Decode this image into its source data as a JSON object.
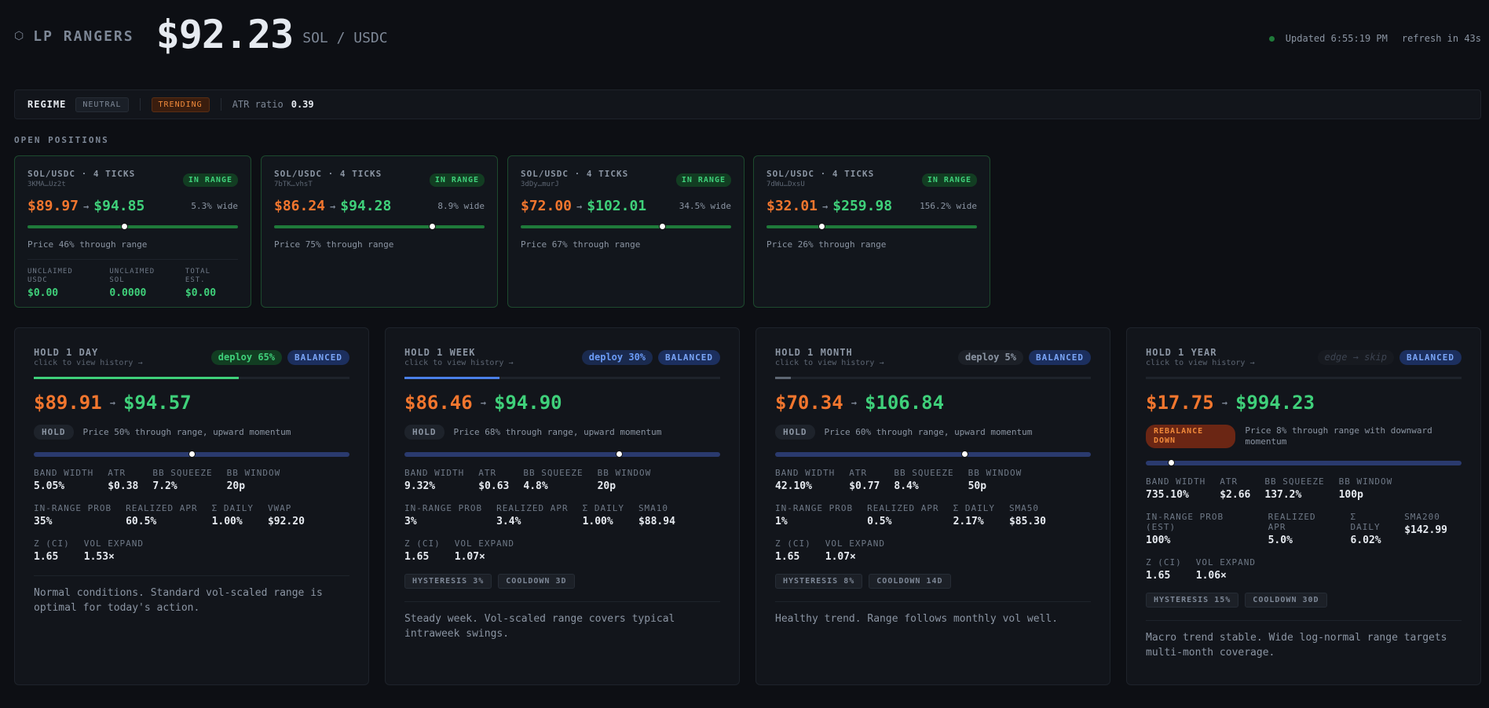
{
  "header": {
    "logo_glyph": "⬡",
    "app_title": "LP RANGERS",
    "price": "$92.23",
    "pair": "SOL / USDC",
    "updated": "Updated 6:55:19 PM",
    "refresh": "refresh in 43s",
    "status_color": "#1f7a3a"
  },
  "regime": {
    "label": "REGIME",
    "neutral": "NEUTRAL",
    "trending": "TRENDING",
    "atr_label": "ATR ratio",
    "atr_value": "0.39"
  },
  "open_positions_title": "OPEN POSITIONS",
  "positions": [
    {
      "title": "SOL/USDC · 4 TICKS",
      "addr": "3KMA…Uz2t",
      "status": "IN RANGE",
      "low": "$89.97",
      "high": "$94.85",
      "arrow": "→",
      "wide": "5.3% wide",
      "through_pct": 46,
      "through": "Price 46% through range",
      "unclaimed": [
        {
          "k": "UNCLAIMED USDC",
          "v": "$0.00"
        },
        {
          "k": "UNCLAIMED SOL",
          "v": "0.0000"
        },
        {
          "k": "TOTAL EST.",
          "v": "$0.00"
        }
      ]
    },
    {
      "title": "SOL/USDC · 4 TICKS",
      "addr": "7bTK…vhsT",
      "status": "IN RANGE",
      "low": "$86.24",
      "high": "$94.28",
      "arrow": "→",
      "wide": "8.9% wide",
      "through_pct": 75,
      "through": "Price 75% through range"
    },
    {
      "title": "SOL/USDC · 4 TICKS",
      "addr": "3dDy…murJ",
      "status": "IN RANGE",
      "low": "$72.00",
      "high": "$102.01",
      "arrow": "→",
      "wide": "34.5% wide",
      "through_pct": 67,
      "through": "Price 67% through range"
    },
    {
      "title": "SOL/USDC · 4 TICKS",
      "addr": "7dWu…DxsU",
      "status": "IN RANGE",
      "low": "$32.01",
      "high": "$259.98",
      "arrow": "→",
      "wide": "156.2% wide",
      "through_pct": 26,
      "through": "Price 26% through range"
    }
  ],
  "holds": [
    {
      "title": "HOLD 1 DAY",
      "sub": "click to view history →",
      "deploy": "deploy 65%",
      "deploy_fraction": 0.65,
      "deploy_color": "#3fd07a",
      "mode": "BALANCED",
      "low": "$89.91",
      "high": "$94.57",
      "arrow": "→",
      "action": "HOLD",
      "action_desc": "Price 50% through range, upward momentum",
      "through_pct": 50,
      "m1": [
        {
          "k": "BAND WIDTH",
          "v": "5.05%"
        },
        {
          "k": "ATR",
          "v": "$0.38"
        },
        {
          "k": "BB SQUEEZE",
          "v": "7.2%"
        },
        {
          "k": "BB WINDOW",
          "v": "20p"
        }
      ],
      "m2": [
        {
          "k": "IN-RANGE PROB",
          "v": "35%"
        },
        {
          "k": "REALIZED APR",
          "v": "60.5%"
        },
        {
          "k": "Σ DAILY",
          "v": "1.00%"
        },
        {
          "k": "VWAP",
          "v": "$92.20"
        }
      ],
      "m3": [
        {
          "k": "Z (CI)",
          "v": "1.65"
        },
        {
          "k": "VOL EXPAND",
          "v": "1.53×"
        }
      ],
      "note": "Normal conditions. Standard vol-scaled range is optimal for today's action."
    },
    {
      "title": "HOLD 1 WEEK",
      "sub": "click to view history →",
      "deploy": "deploy 30%",
      "deploy_fraction": 0.3,
      "deploy_color": "#4a7fe8",
      "mode": "BALANCED",
      "low": "$86.46",
      "high": "$94.90",
      "arrow": "→",
      "action": "HOLD",
      "action_desc": "Price 68% through range, upward momentum",
      "through_pct": 68,
      "m1": [
        {
          "k": "BAND WIDTH",
          "v": "9.32%"
        },
        {
          "k": "ATR",
          "v": "$0.63"
        },
        {
          "k": "BB SQUEEZE",
          "v": "4.8%"
        },
        {
          "k": "BB WINDOW",
          "v": "20p"
        }
      ],
      "m2": [
        {
          "k": "IN-RANGE PROB",
          "v": "3%"
        },
        {
          "k": "REALIZED APR",
          "v": "3.4%"
        },
        {
          "k": "Σ DAILY",
          "v": "1.00%"
        },
        {
          "k": "SMA10",
          "v": "$88.94"
        }
      ],
      "m3": [
        {
          "k": "Z (CI)",
          "v": "1.65"
        },
        {
          "k": "VOL EXPAND",
          "v": "1.07×"
        }
      ],
      "pills": [
        "HYSTERESIS 3%",
        "COOLDOWN 3D"
      ],
      "note": "Steady week. Vol-scaled range covers typical intraweek swings."
    },
    {
      "title": "HOLD 1 MONTH",
      "sub": "click to view history →",
      "deploy": "deploy 5%",
      "deploy_fraction": 0.05,
      "deploy_color": "#5d6673",
      "mode": "BALANCED",
      "low": "$70.34",
      "high": "$106.84",
      "arrow": "→",
      "action": "HOLD",
      "action_desc": "Price 60% through range, upward momentum",
      "through_pct": 60,
      "m1": [
        {
          "k": "BAND WIDTH",
          "v": "42.10%"
        },
        {
          "k": "ATR",
          "v": "$0.77"
        },
        {
          "k": "BB SQUEEZE",
          "v": "8.4%"
        },
        {
          "k": "BB WINDOW",
          "v": "50p"
        }
      ],
      "m2": [
        {
          "k": "IN-RANGE PROB",
          "v": "1%"
        },
        {
          "k": "REALIZED APR",
          "v": "0.5%"
        },
        {
          "k": "Σ DAILY",
          "v": "2.17%"
        },
        {
          "k": "SMA50",
          "v": "$85.30"
        }
      ],
      "m3": [
        {
          "k": "Z (CI)",
          "v": "1.65"
        },
        {
          "k": "VOL EXPAND",
          "v": "1.07×"
        }
      ],
      "pills": [
        "HYSTERESIS 8%",
        "COOLDOWN 14D"
      ],
      "note": "Healthy trend. Range follows monthly vol well."
    },
    {
      "title": "HOLD 1 YEAR",
      "sub": "click to view history →",
      "deploy": "edge → skip",
      "deploy_fraction": 0,
      "deploy_color": "#262c35",
      "mode": "BALANCED",
      "low": "$17.75",
      "high": "$994.23",
      "arrow": "→",
      "action": "REBALANCE DOWN",
      "action_desc": "Price 8% through range with downward momentum",
      "through_pct": 8,
      "m1": [
        {
          "k": "BAND WIDTH",
          "v": "735.10%"
        },
        {
          "k": "ATR",
          "v": "$2.66"
        },
        {
          "k": "BB SQUEEZE",
          "v": "137.2%"
        },
        {
          "k": "BB WINDOW",
          "v": "100p"
        }
      ],
      "m2": [
        {
          "k": "IN-RANGE PROB (EST)",
          "v": "100%"
        },
        {
          "k": "REALIZED APR",
          "v": "5.0%"
        },
        {
          "k": "Σ DAILY",
          "v": "6.02%"
        },
        {
          "k": "SMA200",
          "v": "$142.99"
        }
      ],
      "m3": [
        {
          "k": "Z (CI)",
          "v": "1.65"
        },
        {
          "k": "VOL EXPAND",
          "v": "1.06×"
        }
      ],
      "pills": [
        "HYSTERESIS 15%",
        "COOLDOWN 30D"
      ],
      "note": "Macro trend stable. Wide log-normal range targets multi-month coverage."
    }
  ]
}
